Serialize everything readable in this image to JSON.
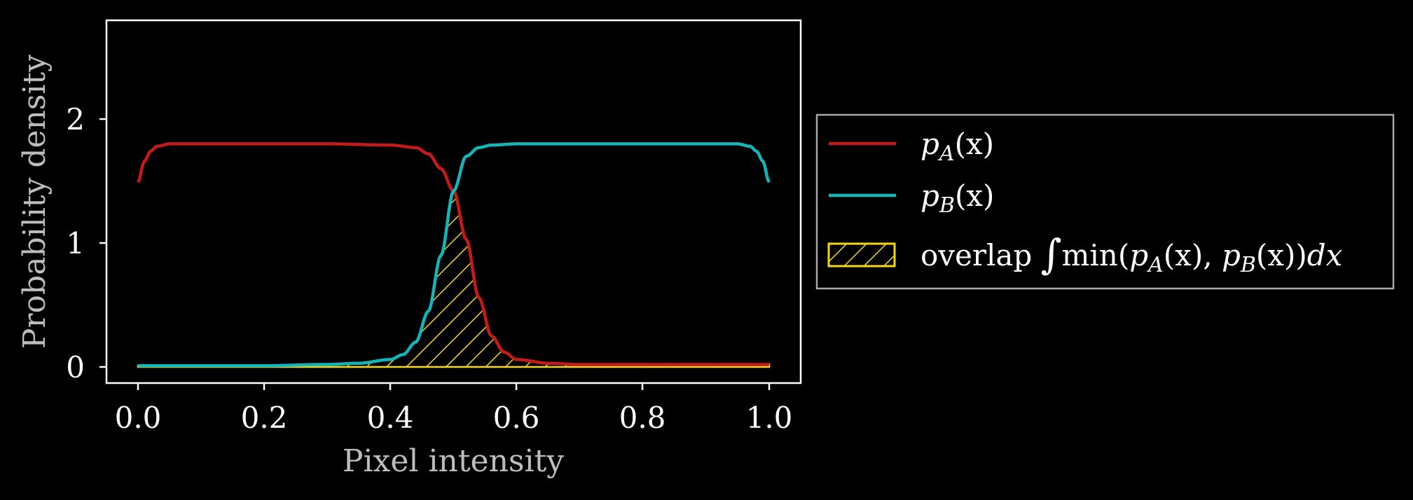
{
  "chart_data": {
    "type": "line",
    "xlabel": "Pixel intensity",
    "ylabel": "Probability density",
    "xlim": [
      -0.05,
      1.05
    ],
    "ylim": [
      -0.13,
      2.8
    ],
    "xticks": [
      "0.0",
      "0.2",
      "0.4",
      "0.6",
      "0.8",
      "1.0"
    ],
    "yticks": [
      "0",
      "1",
      "2"
    ],
    "grid": false,
    "legend_position": "outside-right",
    "series": [
      {
        "name": "p_A(x)",
        "color": "#c41a1a",
        "x": [
          0.0,
          0.01,
          0.02,
          0.03,
          0.05,
          0.1,
          0.2,
          0.3,
          0.4,
          0.44,
          0.46,
          0.48,
          0.5,
          0.52,
          0.54,
          0.56,
          0.58,
          0.6,
          0.65,
          0.7,
          0.8,
          0.9,
          1.0
        ],
        "values": [
          1.49,
          1.66,
          1.74,
          1.78,
          1.8,
          1.8,
          1.8,
          1.8,
          1.79,
          1.77,
          1.72,
          1.6,
          1.42,
          1.03,
          0.56,
          0.25,
          0.12,
          0.06,
          0.03,
          0.02,
          0.02,
          0.02,
          0.02
        ]
      },
      {
        "name": "p_B(x)",
        "color": "#13b5b8",
        "x": [
          0.0,
          0.1,
          0.2,
          0.3,
          0.35,
          0.4,
          0.42,
          0.44,
          0.46,
          0.48,
          0.5,
          0.52,
          0.54,
          0.56,
          0.6,
          0.7,
          0.8,
          0.9,
          0.95,
          0.97,
          0.98,
          0.99,
          1.0
        ],
        "values": [
          0.01,
          0.01,
          0.01,
          0.02,
          0.03,
          0.06,
          0.1,
          0.2,
          0.45,
          0.9,
          1.42,
          1.7,
          1.77,
          1.79,
          1.8,
          1.8,
          1.8,
          1.8,
          1.8,
          1.78,
          1.74,
          1.66,
          1.49
        ]
      }
    ],
    "fill": {
      "name": "overlap ∫min(p_A(x), p_B(x))dx",
      "kind": "min-of-series",
      "color": "#f5d80f",
      "hatch": "diagonal"
    },
    "legend": {
      "entries": [
        {
          "name_base": "p",
          "name_sub": "A",
          "name_rest": "(x)"
        },
        {
          "name_base": "p",
          "name_sub": "B",
          "name_rest": "(x)"
        },
        {
          "label_word": "overlap",
          "integral": "∫",
          "min_text": "min(",
          "p1": "p",
          "s1": "A",
          "r1": "(x), ",
          "p2": "p",
          "s2": "B",
          "r2": "(x))",
          "dx": "dx"
        }
      ]
    }
  },
  "colors": {
    "background": "#000000",
    "axes": "#ffffff",
    "legend_frame": "#a8a8a8"
  }
}
